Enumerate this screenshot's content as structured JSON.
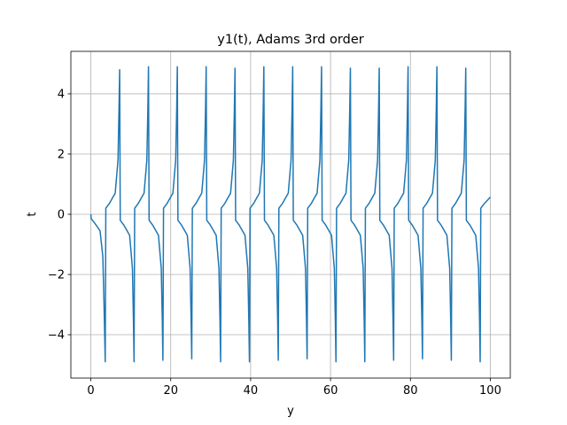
{
  "chart_data": {
    "type": "line",
    "title": "y1(t), Adams 3rd order",
    "xlabel": "y",
    "ylabel": "t",
    "x": [
      0,
      0.1,
      1.0,
      2.3,
      3.0,
      3.3,
      3.6,
      3.75,
      4.6,
      6.1,
      6.8,
      7.05,
      7.21,
      7.36,
      8.21,
      9.71,
      10.41,
      10.66,
      10.82,
      10.97,
      11.82,
      13.32,
      14.02,
      14.27,
      14.43,
      14.58,
      15.43,
      16.93,
      17.63,
      17.88,
      18.04,
      18.19,
      19.04,
      20.54,
      21.24,
      21.49,
      21.65,
      21.8,
      22.65,
      24.15,
      24.85,
      25.1,
      25.26,
      25.41,
      26.26,
      27.76,
      28.46,
      28.71,
      28.87,
      29.02,
      29.87,
      31.37,
      32.07,
      32.32,
      32.48,
      32.63,
      33.48,
      34.98,
      35.68,
      35.93,
      36.09,
      36.24,
      37.09,
      38.59,
      39.29,
      39.54,
      39.7,
      39.85,
      40.7,
      42.2,
      42.9,
      43.15,
      43.31,
      43.46,
      44.31,
      45.81,
      46.51,
      46.76,
      46.92,
      47.07,
      47.92,
      49.42,
      50.12,
      50.37,
      50.53,
      50.68,
      51.53,
      53.03,
      53.73,
      53.98,
      54.14,
      54.29,
      55.14,
      56.64,
      57.34,
      57.59,
      57.75,
      57.9,
      58.75,
      60.25,
      60.95,
      61.2,
      61.36,
      61.51,
      62.36,
      63.86,
      64.56,
      64.81,
      64.97,
      65.12,
      65.97,
      67.47,
      68.17,
      68.42,
      68.58,
      68.73,
      69.58,
      71.08,
      71.78,
      72.03,
      72.19,
      72.34,
      73.19,
      74.69,
      75.39,
      75.64,
      75.8,
      75.95,
      76.8,
      78.3,
      79.0,
      79.25,
      79.41,
      79.56,
      80.41,
      81.91,
      82.61,
      82.86,
      83.02,
      83.17,
      84.02,
      85.52,
      86.22,
      86.47,
      86.63,
      86.78,
      87.63,
      89.13,
      89.83,
      90.08,
      90.24,
      90.39,
      91.24,
      92.74,
      93.44,
      93.69,
      93.85,
      94.0,
      94.85,
      96.35,
      97.05,
      97.3,
      97.46,
      97.61,
      98.46,
      100
    ],
    "series": [
      {
        "color": "#1f77b4",
        "values": [
          0,
          -0.15,
          -0.3,
          -0.55,
          -1.4,
          -3.0,
          -4.9,
          0.2,
          0.35,
          0.7,
          1.8,
          3.5,
          4.8,
          -0.2,
          -0.35,
          -0.7,
          -1.8,
          -3.5,
          -4.9,
          0.2,
          0.35,
          0.7,
          1.8,
          3.5,
          4.9,
          -0.2,
          -0.35,
          -0.7,
          -1.8,
          -3.5,
          -4.85,
          0.2,
          0.35,
          0.7,
          1.8,
          3.5,
          4.9,
          -0.2,
          -0.35,
          -0.7,
          -1.8,
          -3.5,
          -4.8,
          0.2,
          0.35,
          0.7,
          1.8,
          3.5,
          4.9,
          -0.2,
          -0.35,
          -0.7,
          -1.8,
          -3.5,
          -4.9,
          0.2,
          0.35,
          0.7,
          1.8,
          3.5,
          4.85,
          -0.2,
          -0.35,
          -0.7,
          -1.8,
          -3.5,
          -4.9,
          0.2,
          0.35,
          0.7,
          1.8,
          3.5,
          4.9,
          -0.2,
          -0.35,
          -0.7,
          -1.8,
          -3.5,
          -4.85,
          0.2,
          0.35,
          0.7,
          1.8,
          3.5,
          4.9,
          -0.2,
          -0.35,
          -0.7,
          -1.8,
          -3.5,
          -4.8,
          0.2,
          0.35,
          0.7,
          1.8,
          3.5,
          4.9,
          -0.2,
          -0.35,
          -0.7,
          -1.8,
          -3.5,
          -4.9,
          0.2,
          0.35,
          0.7,
          1.8,
          3.5,
          4.85,
          -0.2,
          -0.35,
          -0.7,
          -1.8,
          -3.5,
          -4.9,
          0.2,
          0.35,
          0.7,
          1.8,
          3.5,
          4.85,
          -0.2,
          -0.35,
          -0.7,
          -1.8,
          -3.5,
          -4.85,
          0.2,
          0.35,
          0.7,
          1.8,
          3.5,
          4.9,
          -0.2,
          -0.35,
          -0.7,
          -1.8,
          -3.5,
          -4.8,
          0.2,
          0.35,
          0.7,
          1.8,
          3.5,
          4.9,
          -0.2,
          -0.35,
          -0.7,
          -1.8,
          -3.5,
          -4.85,
          0.2,
          0.35,
          0.7,
          1.8,
          3.5,
          4.85,
          -0.2,
          -0.35,
          -0.7,
          -1.8,
          -3.5,
          -4.9,
          0.2,
          0.35,
          0.57
        ]
      }
    ],
    "xlim": [
      -5,
      105
    ],
    "xticks": [
      0,
      20,
      40,
      60,
      80,
      100
    ],
    "ylim": [
      -5.44,
      5.41
    ],
    "yticks": [
      {
        "value": -4,
        "label": "−4"
      },
      {
        "value": -2,
        "label": "−2"
      },
      0,
      2,
      4
    ],
    "grid": true
  }
}
